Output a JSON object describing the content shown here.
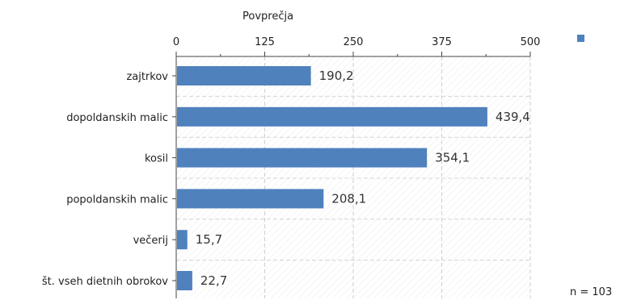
{
  "chart_data": {
    "type": "bar",
    "orientation": "horizontal",
    "title": "Povprečja",
    "categories": [
      "zajtrkov",
      "dopoldanskih malic",
      "kosil",
      "popoldanskih malic",
      "večerij",
      "št. vseh dietnih obrokov"
    ],
    "values": [
      190.2,
      439.4,
      354.1,
      208.1,
      15.7,
      22.7
    ],
    "value_labels": [
      "190,2",
      "439,4",
      "354,1",
      "208,1",
      "15,7",
      "22,7"
    ],
    "xlim": [
      0,
      500
    ],
    "xticks": [
      0,
      125,
      250,
      375,
      500
    ],
    "xtick_labels": [
      "0",
      "125",
      "250",
      "375",
      "500"
    ],
    "grid": true,
    "legend": "top-right",
    "series_color": "#4f81bd"
  },
  "footnote": "n = 103"
}
